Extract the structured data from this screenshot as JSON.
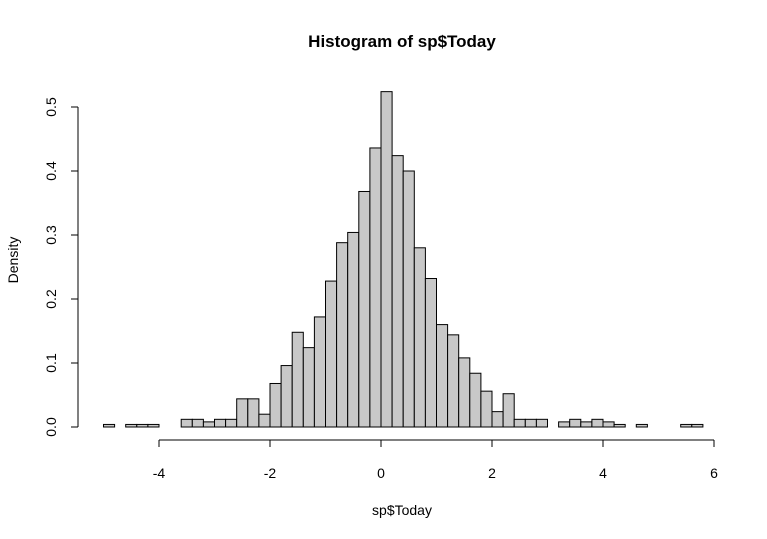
{
  "chart_data": {
    "type": "bar",
    "title": "Histogram of sp$Today",
    "xlabel": "sp$Today",
    "ylabel": "Density",
    "bin_width": 0.2,
    "x_ticks": [
      "-4",
      "-2",
      "0",
      "2",
      "4",
      "6"
    ],
    "x_tick_values": [
      -4,
      -2,
      0,
      2,
      4,
      6
    ],
    "y_ticks": [
      "0.0",
      "0.1",
      "0.2",
      "0.3",
      "0.4",
      "0.5"
    ],
    "y_tick_values": [
      0,
      0.1,
      0.2,
      0.3,
      0.4,
      0.5
    ],
    "xlim": [
      -5.2,
      6.0
    ],
    "ylim": [
      0,
      0.52
    ],
    "grid": false,
    "series": [
      {
        "bins": [
          {
            "x0": -5.0,
            "x1": -4.8,
            "density": 0.004
          },
          {
            "x0": -4.6,
            "x1": -4.4,
            "density": 0.004
          },
          {
            "x0": -4.4,
            "x1": -4.2,
            "density": 0.004
          },
          {
            "x0": -4.2,
            "x1": -4.0,
            "density": 0.004
          },
          {
            "x0": -3.6,
            "x1": -3.4,
            "density": 0.012
          },
          {
            "x0": -3.4,
            "x1": -3.2,
            "density": 0.012
          },
          {
            "x0": -3.2,
            "x1": -3.0,
            "density": 0.008
          },
          {
            "x0": -3.0,
            "x1": -2.8,
            "density": 0.012
          },
          {
            "x0": -2.8,
            "x1": -2.6,
            "density": 0.012
          },
          {
            "x0": -2.6,
            "x1": -2.4,
            "density": 0.044
          },
          {
            "x0": -2.4,
            "x1": -2.2,
            "density": 0.044
          },
          {
            "x0": -2.2,
            "x1": -2.0,
            "density": 0.02
          },
          {
            "x0": -2.0,
            "x1": -1.8,
            "density": 0.068
          },
          {
            "x0": -1.8,
            "x1": -1.6,
            "density": 0.096
          },
          {
            "x0": -1.6,
            "x1": -1.4,
            "density": 0.148
          },
          {
            "x0": -1.4,
            "x1": -1.2,
            "density": 0.124
          },
          {
            "x0": -1.2,
            "x1": -1.0,
            "density": 0.172
          },
          {
            "x0": -1.0,
            "x1": -0.8,
            "density": 0.228
          },
          {
            "x0": -0.8,
            "x1": -0.6,
            "density": 0.288
          },
          {
            "x0": -0.6,
            "x1": -0.4,
            "density": 0.304
          },
          {
            "x0": -0.4,
            "x1": -0.2,
            "density": 0.368
          },
          {
            "x0": -0.2,
            "x1": 0.0,
            "density": 0.436
          },
          {
            "x0": 0.0,
            "x1": 0.2,
            "density": 0.524
          },
          {
            "x0": 0.2,
            "x1": 0.4,
            "density": 0.424
          },
          {
            "x0": 0.4,
            "x1": 0.6,
            "density": 0.4
          },
          {
            "x0": 0.6,
            "x1": 0.8,
            "density": 0.28
          },
          {
            "x0": 0.8,
            "x1": 1.0,
            "density": 0.232
          },
          {
            "x0": 1.0,
            "x1": 1.2,
            "density": 0.16
          },
          {
            "x0": 1.2,
            "x1": 1.4,
            "density": 0.144
          },
          {
            "x0": 1.4,
            "x1": 1.6,
            "density": 0.108
          },
          {
            "x0": 1.6,
            "x1": 1.8,
            "density": 0.084
          },
          {
            "x0": 1.8,
            "x1": 2.0,
            "density": 0.056
          },
          {
            "x0": 2.0,
            "x1": 2.2,
            "density": 0.024
          },
          {
            "x0": 2.2,
            "x1": 2.4,
            "density": 0.052
          },
          {
            "x0": 2.4,
            "x1": 2.6,
            "density": 0.012
          },
          {
            "x0": 2.6,
            "x1": 2.8,
            "density": 0.012
          },
          {
            "x0": 2.8,
            "x1": 3.0,
            "density": 0.012
          },
          {
            "x0": 3.2,
            "x1": 3.4,
            "density": 0.008
          },
          {
            "x0": 3.4,
            "x1": 3.6,
            "density": 0.012
          },
          {
            "x0": 3.6,
            "x1": 3.8,
            "density": 0.008
          },
          {
            "x0": 3.8,
            "x1": 4.0,
            "density": 0.012
          },
          {
            "x0": 4.0,
            "x1": 4.2,
            "density": 0.008
          },
          {
            "x0": 4.2,
            "x1": 4.4,
            "density": 0.004
          },
          {
            "x0": 4.6,
            "x1": 4.8,
            "density": 0.004
          },
          {
            "x0": 5.4,
            "x1": 5.6,
            "density": 0.004
          },
          {
            "x0": 5.6,
            "x1": 5.8,
            "density": 0.004
          }
        ]
      }
    ],
    "colors": {
      "bar_fill": "#c8c8c8",
      "bar_stroke": "#000000",
      "background": "#ffffff"
    }
  }
}
